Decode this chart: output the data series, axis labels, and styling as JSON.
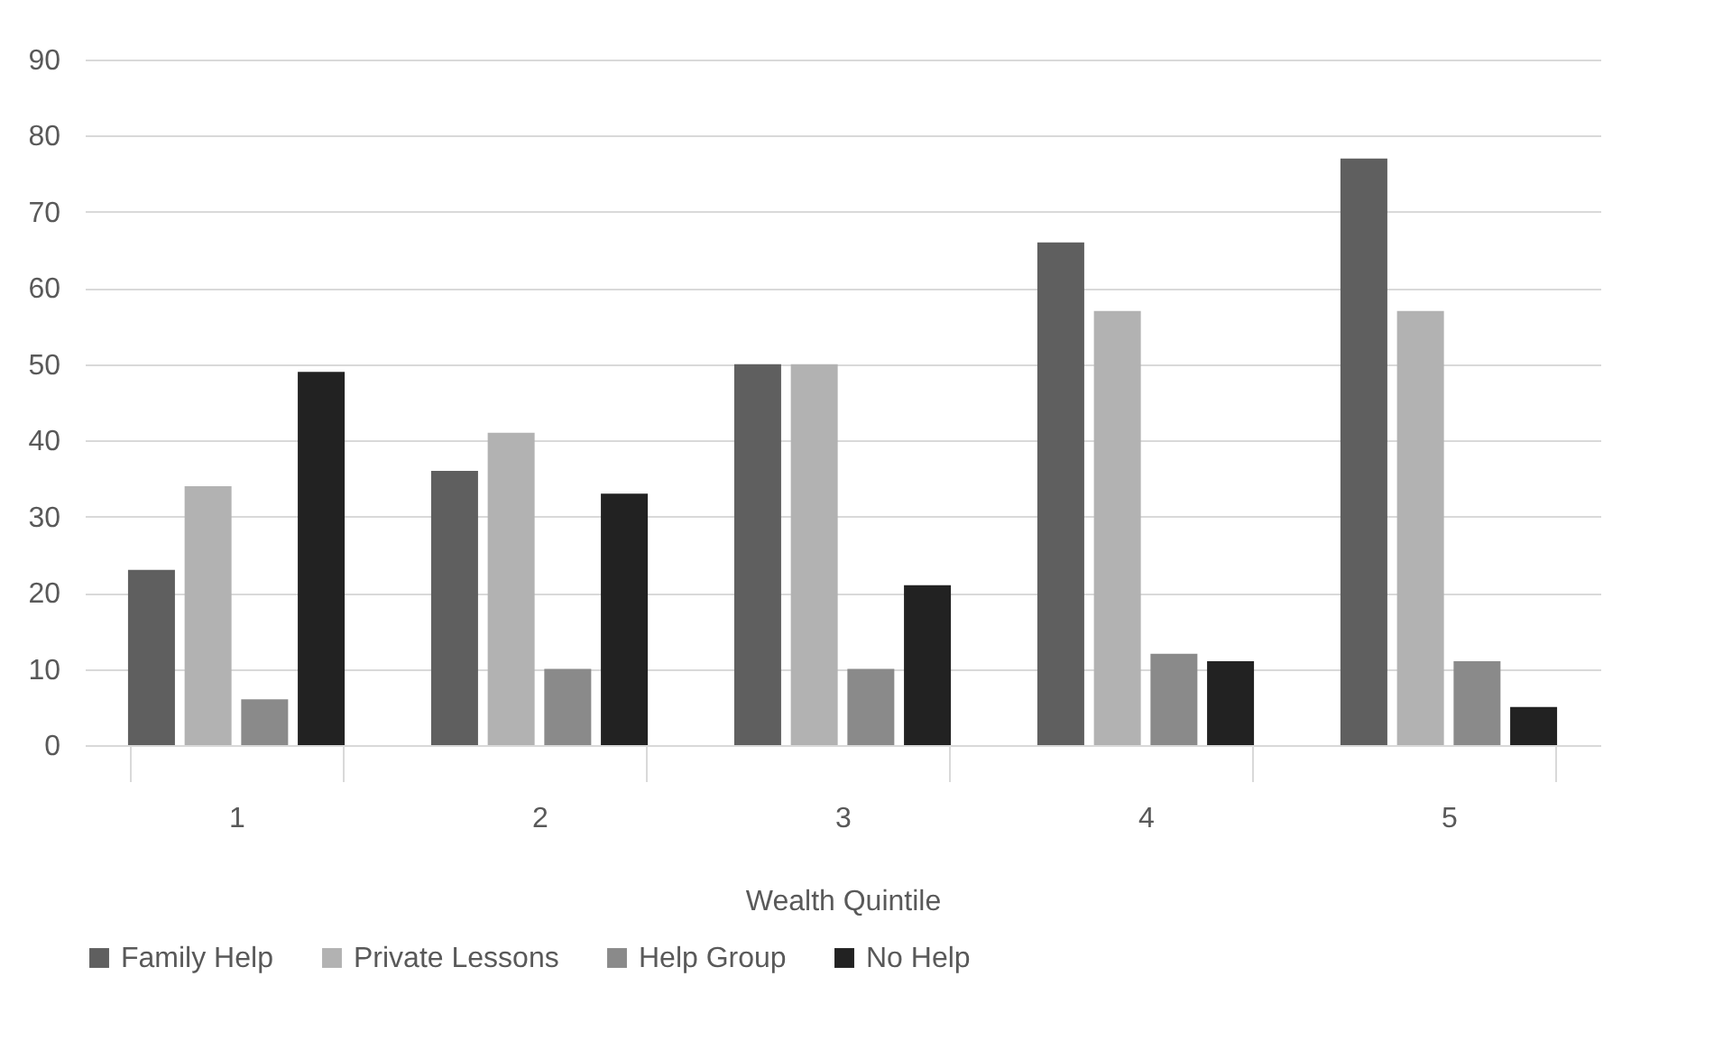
{
  "chart_data": {
    "type": "bar",
    "categories": [
      "1",
      "2",
      "3",
      "4",
      "5"
    ],
    "xlabel": "Wealth Quintile",
    "series": [
      {
        "name": "Family Help",
        "color": "#5f5f5f",
        "values": [
          23,
          36,
          50,
          66,
          77
        ]
      },
      {
        "name": "Private Lessons",
        "color": "#b2b2b2",
        "values": [
          34,
          41,
          50,
          57,
          57
        ]
      },
      {
        "name": "Help Group",
        "color": "#8a8a8a",
        "values": [
          6,
          10,
          10,
          12,
          11
        ]
      },
      {
        "name": "No Help",
        "color": "#222222",
        "values": [
          49,
          33,
          21,
          11,
          5
        ]
      }
    ],
    "ylim": [
      0,
      90
    ],
    "yticks": [
      0,
      10,
      20,
      30,
      40,
      50,
      60,
      70,
      80,
      90
    ],
    "grid": "y",
    "legend": "bottom"
  }
}
